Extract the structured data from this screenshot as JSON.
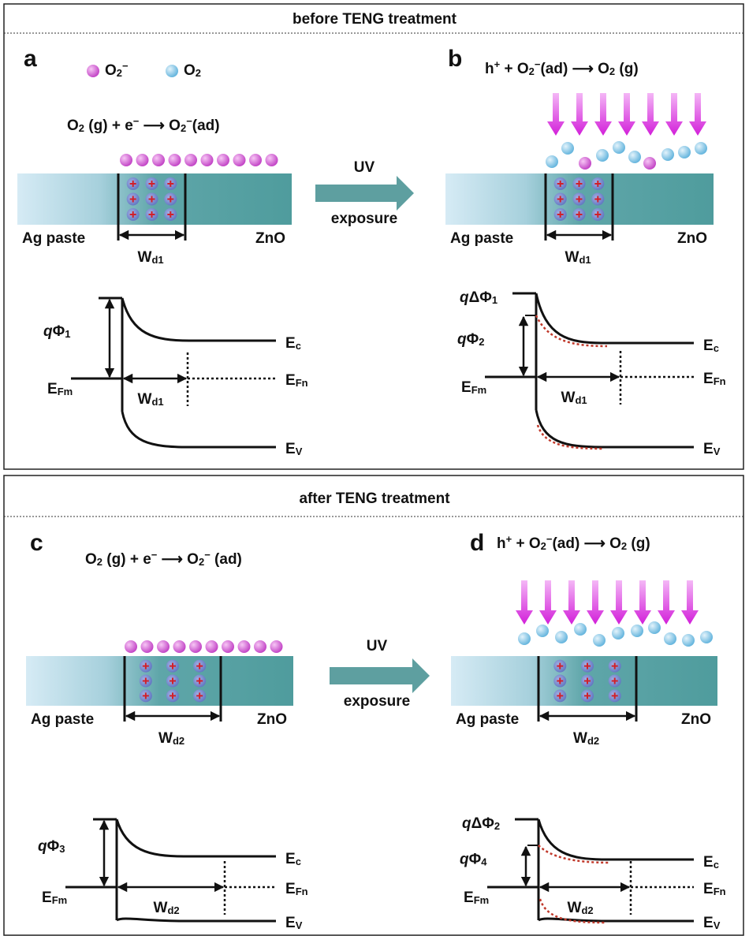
{
  "sections": [
    {
      "header": "before TENG treatment",
      "arrow": {
        "top": "UV",
        "bottom": "exposure"
      },
      "panels": [
        {
          "label": "a",
          "legend": [
            [
              {
                "text": "O"
              },
              {
                "sub": "2"
              },
              {
                "sup": "−"
              }
            ],
            [
              {
                "text": "O"
              },
              {
                "sub": "2"
              }
            ]
          ],
          "equation": [
            {
              "text": "O"
            },
            {
              "sub": "2"
            },
            {
              "text": " (g)  +  e"
            },
            {
              "sup": "−"
            },
            {
              "text": " ⟶ O"
            },
            {
              "sub": "2"
            },
            {
              "sup": "−"
            },
            {
              "text": "(ad)"
            }
          ],
          "left": "Ag paste",
          "right": "ZnO",
          "width": [
            {
              "text": "W"
            },
            {
              "sub": "d1"
            }
          ],
          "band": {
            "barrier": [
              {
                "italic": "q"
              },
              {
                "text": "Φ"
              },
              {
                "sub": "1"
              }
            ],
            "ec": [
              {
                "text": "E"
              },
              {
                "sub": "c"
              }
            ],
            "efm": [
              {
                "text": "E"
              },
              {
                "sub": "Fm"
              }
            ],
            "efn": [
              {
                "text": "E"
              },
              {
                "sub": "Fn"
              }
            ],
            "ev": [
              {
                "text": "E"
              },
              {
                "sub": "V"
              }
            ],
            "width": [
              {
                "text": "W"
              },
              {
                "sub": "d1"
              }
            ]
          }
        },
        {
          "label": "b",
          "equation": [
            {
              "text": "h"
            },
            {
              "sup": "+"
            },
            {
              "text": "  +  O"
            },
            {
              "sub": "2"
            },
            {
              "sup": "−"
            },
            {
              "text": "(ad)  ⟶  O"
            },
            {
              "sub": "2"
            },
            {
              "text": " (g)"
            }
          ],
          "left": "Ag paste",
          "right": "ZnO",
          "width": [
            {
              "text": "W"
            },
            {
              "sub": "d1"
            }
          ],
          "band": {
            "delta": [
              {
                "italic": "q"
              },
              {
                "text": "ΔΦ"
              },
              {
                "sub": "1"
              }
            ],
            "barrier": [
              {
                "italic": "q"
              },
              {
                "text": "Φ"
              },
              {
                "sub": "2"
              }
            ],
            "ec": [
              {
                "text": "E"
              },
              {
                "sub": "c"
              }
            ],
            "efm": [
              {
                "text": "E"
              },
              {
                "sub": "Fm"
              }
            ],
            "efn": [
              {
                "text": "E"
              },
              {
                "sub": "Fn"
              }
            ],
            "ev": [
              {
                "text": "E"
              },
              {
                "sub": "V"
              }
            ],
            "width": [
              {
                "text": "W"
              },
              {
                "sub": "d1"
              }
            ]
          }
        }
      ]
    },
    {
      "header": "after TENG treatment",
      "arrow": {
        "top": "UV",
        "bottom": "exposure"
      },
      "panels": [
        {
          "label": "c",
          "equation": [
            {
              "text": "O"
            },
            {
              "sub": "2"
            },
            {
              "text": " (g)  +  e"
            },
            {
              "sup": "−"
            },
            {
              "text": " ⟶ O"
            },
            {
              "sub": "2"
            },
            {
              "sup": "−"
            },
            {
              "text": " (ad)"
            }
          ],
          "left": "Ag paste",
          "right": "ZnO",
          "width": [
            {
              "text": "W"
            },
            {
              "sub": "d2"
            }
          ],
          "band": {
            "barrier": [
              {
                "italic": "q"
              },
              {
                "text": "Φ"
              },
              {
                "sub": "3"
              }
            ],
            "ec": [
              {
                "text": "E"
              },
              {
                "sub": "c"
              }
            ],
            "efm": [
              {
                "text": "E"
              },
              {
                "sub": "Fm"
              }
            ],
            "efn": [
              {
                "text": "E"
              },
              {
                "sub": "Fn"
              }
            ],
            "ev": [
              {
                "text": "E"
              },
              {
                "sub": "V"
              }
            ],
            "width": [
              {
                "text": "W"
              },
              {
                "sub": "d2"
              }
            ]
          }
        },
        {
          "label": "d",
          "equation": [
            {
              "text": "h"
            },
            {
              "sup": "+"
            },
            {
              "text": "  +  O"
            },
            {
              "sub": "2"
            },
            {
              "sup": "−"
            },
            {
              "text": "(ad) ⟶ O"
            },
            {
              "sub": "2"
            },
            {
              "text": " (g)"
            }
          ],
          "left": "Ag paste",
          "right": "ZnO",
          "width": [
            {
              "text": "W"
            },
            {
              "sub": "d2"
            }
          ],
          "band": {
            "delta": [
              {
                "italic": "q"
              },
              {
                "text": "ΔΦ"
              },
              {
                "sub": "2"
              }
            ],
            "barrier": [
              {
                "italic": "q"
              },
              {
                "text": "Φ"
              },
              {
                "sub": "4"
              }
            ],
            "ec": [
              {
                "text": "E"
              },
              {
                "sub": "c"
              }
            ],
            "efm": [
              {
                "text": "E"
              },
              {
                "sub": "Fm"
              }
            ],
            "efn": [
              {
                "text": "E"
              },
              {
                "sub": "Fn"
              }
            ],
            "ev": [
              {
                "text": "E"
              },
              {
                "sub": "V"
              }
            ],
            "width": [
              {
                "text": "W"
              },
              {
                "sub": "d2"
              }
            ]
          }
        }
      ]
    }
  ]
}
